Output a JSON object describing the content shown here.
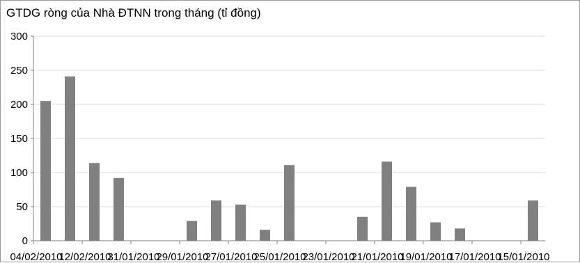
{
  "chart_data": {
    "type": "bar",
    "title": "GTDG ròng của Nhà ĐTNN trong tháng (tỉ đồng)",
    "xlabel": "",
    "ylabel": "",
    "ylim": [
      0,
      300
    ],
    "yticks": [
      0,
      50,
      100,
      150,
      200,
      250,
      300
    ],
    "grid": true,
    "legend": "none",
    "bar_color": "#808080",
    "x_tick_labels": [
      "04/02/2010",
      "12/02/2010",
      "31/01/2010",
      "29/01/2010",
      "27/01/2010",
      "25/01/2010",
      "23/01/2010",
      "21/01/2010",
      "19/01/2010",
      "17/01/2010",
      "15/01/2010"
    ],
    "values": [
      205,
      241,
      114,
      92,
      0,
      0,
      29,
      59,
      53,
      16,
      111,
      0,
      0,
      35,
      116,
      79,
      27,
      18,
      0,
      0,
      59
    ]
  }
}
